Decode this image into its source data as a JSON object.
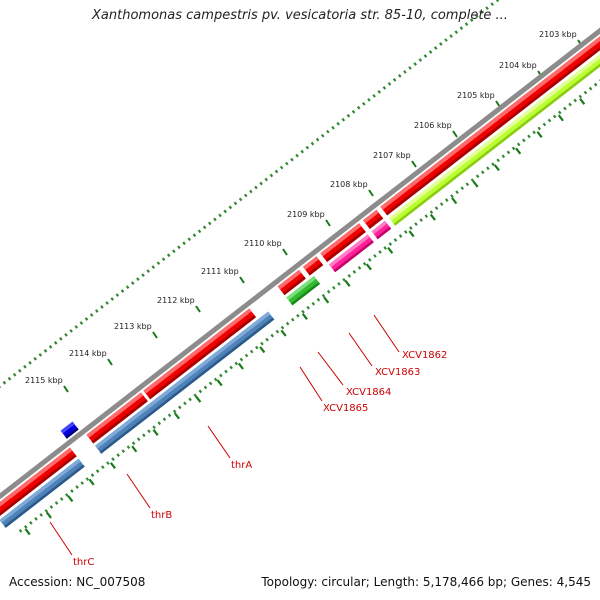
{
  "title": "Xanthomonas campestris pv. vesicatoria str. 85-10, complete ...",
  "footer": {
    "accession": "Accession: NC_007508",
    "summary": "Topology: circular; Length: 5,178,466 bp; Genes: 4,545"
  },
  "colors": {
    "backbone": "#8c8c8c",
    "red_feature": "#ee0000",
    "blue_feature": "#4f82b8",
    "green_feature": "#33bb33",
    "magenta_feature": "#ff2299",
    "lime_feature": "#bbff33",
    "dark_blue_feature": "#0000dd",
    "tick_dots": "#338833",
    "label_color": "#cc0000"
  },
  "scale_ticks": [
    "2103 kbp",
    "2104 kbp",
    "2105 kbp",
    "2106 kbp",
    "2107 kbp",
    "2108 kbp",
    "2109 kbp",
    "2110 kbp",
    "2111 kbp",
    "2112 kbp",
    "2113 kbp",
    "2114 kbp",
    "2115 kbp"
  ],
  "gene_labels": [
    "XCV1862",
    "XCV1863",
    "XCV1864",
    "XCV1865",
    "thrA",
    "thrB",
    "thrC"
  ]
}
